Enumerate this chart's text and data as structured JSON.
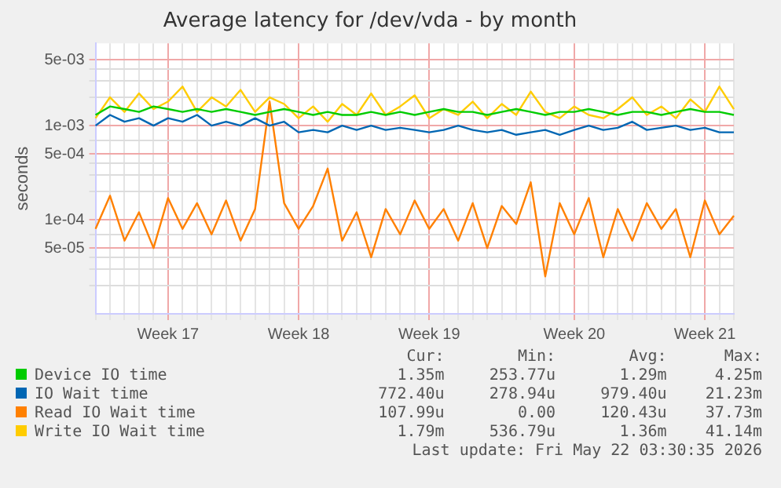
{
  "chart_data": {
    "type": "line",
    "title": "Average latency for /dev/vda - by month",
    "ylabel": "seconds",
    "categories": [
      null,
      null,
      null,
      null,
      null,
      "Week 17",
      null,
      null,
      null,
      null,
      null,
      null,
      null,
      null,
      "Week 18",
      null,
      null,
      null,
      null,
      null,
      null,
      null,
      null,
      "Week 19",
      null,
      null,
      null,
      null,
      null,
      null,
      null,
      null,
      null,
      "Week 20",
      null,
      null,
      null,
      null,
      null,
      null,
      null,
      null,
      "Week 21",
      null,
      null
    ],
    "series": [
      {
        "name": "Device IO time",
        "color": "#00cc00",
        "values": [
          0.0013,
          0.0016,
          0.0015,
          0.0014,
          0.0016,
          0.0015,
          0.0014,
          0.0015,
          0.0014,
          0.0015,
          0.0014,
          0.0013,
          0.0014,
          0.0015,
          0.0014,
          0.0013,
          0.0014,
          0.0013,
          0.0013,
          0.0014,
          0.0013,
          0.0014,
          0.0013,
          0.0014,
          0.0015,
          0.0014,
          0.0014,
          0.0013,
          0.0014,
          0.0015,
          0.0014,
          0.0013,
          0.0014,
          0.0014,
          0.0015,
          0.0014,
          0.0013,
          0.0014,
          0.0014,
          0.0013,
          0.0014,
          0.0015,
          0.0014,
          0.0014,
          0.0013
        ]
      },
      {
        "name": "IO Wait time",
        "color": "#0066b3",
        "values": [
          0.001,
          0.0013,
          0.0011,
          0.0012,
          0.001,
          0.0012,
          0.0011,
          0.0013,
          0.001,
          0.0011,
          0.001,
          0.0012,
          0.001,
          0.0011,
          0.00085,
          0.0009,
          0.00085,
          0.001,
          0.0009,
          0.001,
          0.0009,
          0.00095,
          0.0009,
          0.00085,
          0.0009,
          0.001,
          0.0009,
          0.00085,
          0.0009,
          0.0008,
          0.00085,
          0.0009,
          0.0008,
          0.0009,
          0.001,
          0.0009,
          0.00095,
          0.0011,
          0.0009,
          0.00095,
          0.001,
          0.0009,
          0.00095,
          0.00085,
          0.00085
        ]
      },
      {
        "name": "Read IO Wait time",
        "color": "#ff8000",
        "values": [
          8e-05,
          0.00018,
          6e-05,
          0.00012,
          5e-05,
          0.00017,
          8e-05,
          0.00015,
          7e-05,
          0.00016,
          6e-05,
          0.00013,
          0.0018,
          0.00015,
          8e-05,
          0.00014,
          0.00035,
          6e-05,
          0.00012,
          4e-05,
          0.00013,
          7e-05,
          0.00016,
          8e-05,
          0.00013,
          6e-05,
          0.00015,
          5e-05,
          0.00014,
          9e-05,
          0.00025,
          2.5e-05,
          0.00015,
          7e-05,
          0.00017,
          4e-05,
          0.00013,
          6e-05,
          0.00015,
          8e-05,
          0.00013,
          4e-05,
          0.00016,
          7e-05,
          0.00011
        ]
      },
      {
        "name": "Write IO Wait time",
        "color": "#ffcc00",
        "values": [
          0.0012,
          0.002,
          0.0014,
          0.0022,
          0.0015,
          0.0018,
          0.0026,
          0.0014,
          0.002,
          0.0016,
          0.0024,
          0.0014,
          0.002,
          0.0017,
          0.0012,
          0.0016,
          0.0011,
          0.0017,
          0.0013,
          0.0022,
          0.0013,
          0.0016,
          0.0021,
          0.0012,
          0.0015,
          0.0013,
          0.0018,
          0.0012,
          0.0017,
          0.0013,
          0.0023,
          0.0014,
          0.0012,
          0.0016,
          0.0013,
          0.0012,
          0.0015,
          0.002,
          0.0013,
          0.0016,
          0.0012,
          0.0019,
          0.0014,
          0.0026,
          0.0015
        ]
      }
    ],
    "log": "y",
    "ylim": [
      1e-05,
      0.0075
    ],
    "yticks": [
      {
        "value": 0.005,
        "label": "5e-03"
      },
      {
        "value": 0.001,
        "label": "1e-03"
      },
      {
        "value": 0.0005,
        "label": "5e-04"
      },
      {
        "value": 0.0001,
        "label": "1e-04"
      },
      {
        "value": 5e-05,
        "label": "5e-05"
      },
      {
        "value": 2e-05,
        "label": null
      },
      {
        "value": 3e-05,
        "label": null
      },
      {
        "value": 4e-05,
        "label": null
      },
      {
        "value": 7e-05,
        "label": null
      },
      {
        "value": 0.0002,
        "label": null
      },
      {
        "value": 0.0003,
        "label": null
      },
      {
        "value": 0.0004,
        "label": null
      },
      {
        "value": 0.0007,
        "label": null
      },
      {
        "value": 0.002,
        "label": null
      },
      {
        "value": 0.003,
        "label": null
      },
      {
        "value": 0.004,
        "label": null
      }
    ],
    "grid": true,
    "legend": "bottom",
    "marker": "none",
    "line_style": "solid",
    "annotations": [
      "Cur:",
      "Min:",
      "Avg:",
      "Max:",
      "1.35m",
      "253.77u",
      "1.29m",
      "4.25m",
      "772.40u",
      "278.94u",
      "979.40u",
      "21.23m",
      "107.99u",
      "0.00",
      "120.43u",
      "37.73m",
      "1.79m",
      "536.79u",
      "1.36m",
      "41.14m",
      "Last update: Fri May 22 03:30:35 2026"
    ]
  }
}
